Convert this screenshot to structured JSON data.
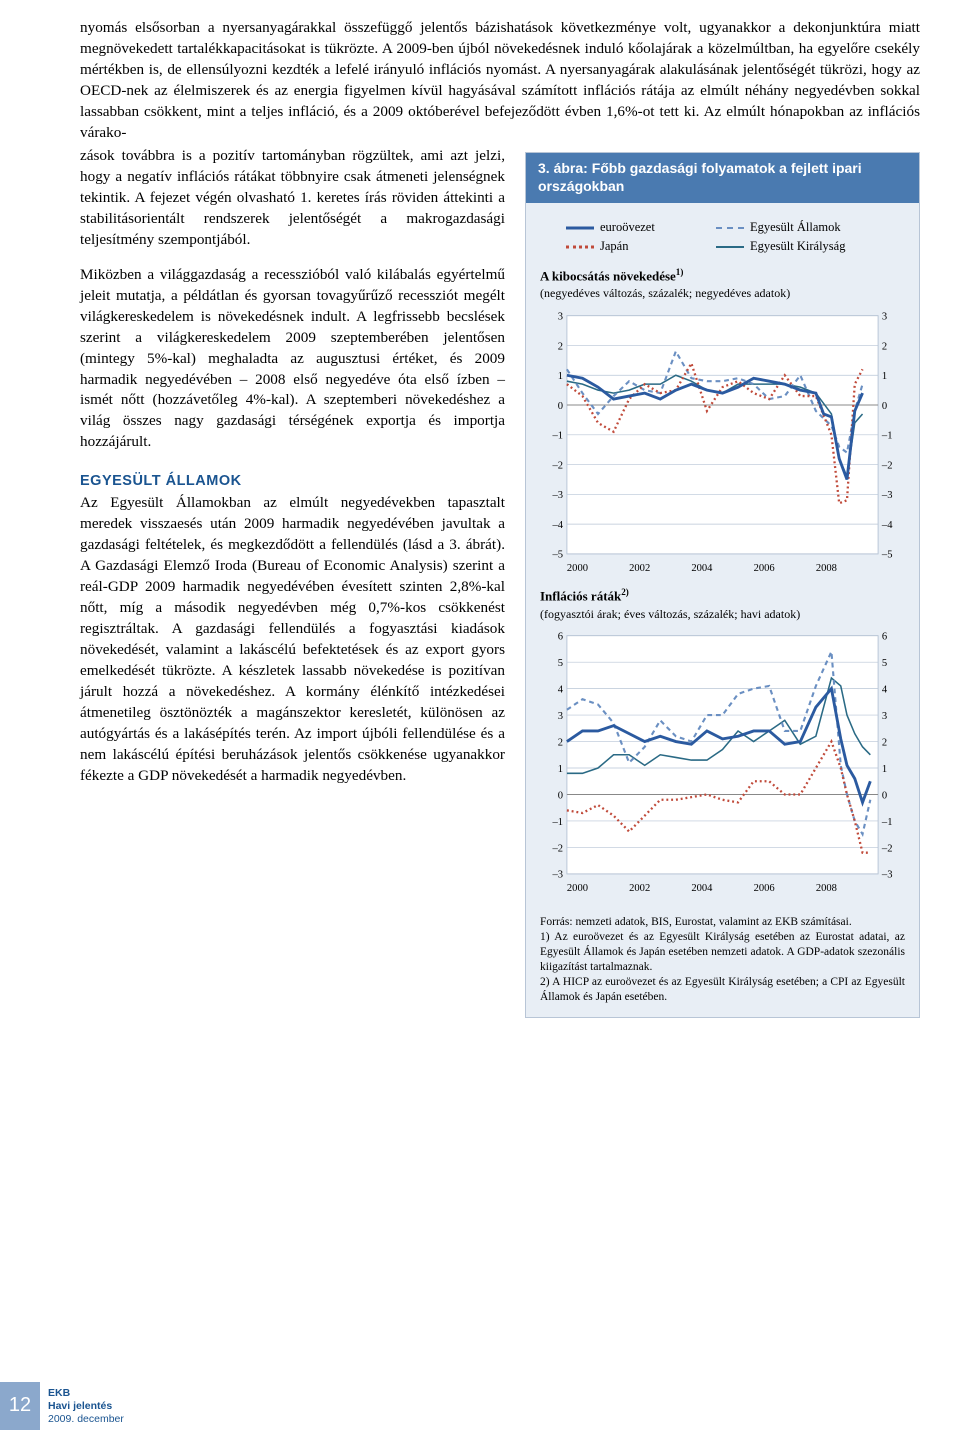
{
  "paragraphs": {
    "p1": "nyomás elsősorban a nyersanyagárakkal összefüggő jelentős bázishatások következménye volt, ugyanakkor a dekonjunktúra miatt megnövekedett tartalékkapacitásokat is tükrözte. A 2009-ben újból növekedésnek induló kőolajárak a közelmúltban, ha egyelőre csekély mértékben is, de ellensúlyozni kezdték a lefelé irányuló inflációs nyomást. A nyersanyagárak alakulásának jelentőségét tükrözi, hogy az OECD-nek az élelmiszerek és az energia figyelmen kívül hagyásával számított inflációs rátája az elmúlt néhány negyedévben sokkal lassabban csökkent, mint a teljes infláció, és a 2009 októberével befejeződött évben 1,6%-ot tett ki. Az elmúlt hónapokban az inflációs várako-",
    "p2a": "zások továbbra is a pozitív tartományban rögzültek, ami azt jelzi, hogy a negatív inflációs rátákat többnyire csak átmeneti jelenségnek tekintik. A fejezet végén olvasható 1. keretes írás röviden áttekinti a stabilitásorientált rendszerek jelentőségét a makrogazdasági teljesítmény szempontjából.",
    "p3": "Miközben a világgazdaság a recesszióból való kilábalás egyértelmű jeleit mutatja, a példátlan és gyorsan tovagyűrűző recessziót megélt világkereskedelem is növekedésnek indult. A legfrissebb becslések szerint a világkereskedelem 2009 szeptemberében jelentősen (mintegy 5%-kal) meghaladta az augusztusi értéket, és 2009 harmadik negyedévében – 2008 első negyedéve óta első ízben – ismét nőtt (hozzávetőleg 4%-kal). A szeptemberi növekedéshez a világ összes nagy gazdasági térségének exportja és importja hozzájárult.",
    "p4": "Az Egyesült Államokban az elmúlt negyedévekben tapasztalt meredek visszaesés után 2009 harmadik negyedévében javultak a gazdasági feltételek, és megkezdődött a fellendülés (lásd a 3. ábrát). A Gazdasági Elemző Iroda (Bureau of Economic Analysis) szerint a reál-GDP 2009 harmadik negyedévében évesített szinten 2,8%-kal nőtt, míg a második negyedévben még 0,7%-kos csökkenést regisztráltak. A gazdasági fellendülés a fogyasztási kiadások növekedését, valamint a lakáscélú befektetések és az export gyors emelkedését tükrözte. A készletek lassabb növekedése is pozitívan járult hozzá a növekedéshez. A kormány élénkítő intézkedései átmenetileg ösztönözték a magánszektor keresletét, különösen az autógyártás és a lakásépítés terén. Az import újbóli fellendülése és a nem lakáscélú építési beruházások jelentős csökkenése ugyanakkor fékezte a GDP növekedését a harmadik negyedévben."
  },
  "section_head": "EGYESÜLT ÁLLAMOK",
  "chart": {
    "title": "3. ábra: Főbb gazdasági folyamatok a fejlett ipari országokban",
    "legend": {
      "euro": "euroövezet",
      "us": "Egyesült Államok",
      "japan": "Japán",
      "uk": "Egyesült Királyság"
    },
    "panel1": {
      "title": "A kibocsátás növekedése",
      "sup": "1)",
      "note": "(negyedéves változás, százalék; negyedéves adatok)",
      "ymin": -5.0,
      "ymax": 3.0,
      "ystep": 1.0,
      "xticks": [
        "2000",
        "2002",
        "2004",
        "2006",
        "2008"
      ],
      "xmin": 2000,
      "xmax": 2010,
      "series": {
        "euro": [
          [
            2000,
            1.0
          ],
          [
            2000.5,
            0.9
          ],
          [
            2001,
            0.6
          ],
          [
            2001.5,
            0.2
          ],
          [
            2002,
            0.3
          ],
          [
            2002.5,
            0.4
          ],
          [
            2003,
            0.2
          ],
          [
            2003.5,
            0.5
          ],
          [
            2004,
            0.7
          ],
          [
            2004.5,
            0.5
          ],
          [
            2005,
            0.4
          ],
          [
            2005.5,
            0.6
          ],
          [
            2006,
            0.9
          ],
          [
            2006.5,
            0.8
          ],
          [
            2007,
            0.7
          ],
          [
            2007.5,
            0.5
          ],
          [
            2008,
            0.4
          ],
          [
            2008.25,
            -0.3
          ],
          [
            2008.5,
            -0.4
          ],
          [
            2008.75,
            -1.8
          ],
          [
            2009,
            -2.5
          ],
          [
            2009.25,
            -0.2
          ],
          [
            2009.5,
            0.4
          ]
        ],
        "us": [
          [
            2000,
            1.2
          ],
          [
            2000.5,
            0.4
          ],
          [
            2001,
            -0.3
          ],
          [
            2001.5,
            0.3
          ],
          [
            2002,
            0.8
          ],
          [
            2002.5,
            0.5
          ],
          [
            2003,
            0.4
          ],
          [
            2003.5,
            1.8
          ],
          [
            2004,
            0.9
          ],
          [
            2004.5,
            0.8
          ],
          [
            2005,
            0.8
          ],
          [
            2005.5,
            0.9
          ],
          [
            2006,
            0.7
          ],
          [
            2006.5,
            0.2
          ],
          [
            2007,
            0.3
          ],
          [
            2007.5,
            1.0
          ],
          [
            2008,
            -0.2
          ],
          [
            2008.5,
            -0.7
          ],
          [
            2008.75,
            -1.4
          ],
          [
            2009,
            -1.6
          ],
          [
            2009.25,
            -0.2
          ],
          [
            2009.5,
            0.7
          ]
        ],
        "japan": [
          [
            2000,
            0.7
          ],
          [
            2000.5,
            0.3
          ],
          [
            2001,
            -0.6
          ],
          [
            2001.5,
            -0.9
          ],
          [
            2002,
            0.2
          ],
          [
            2002.5,
            0.7
          ],
          [
            2003,
            0.4
          ],
          [
            2003.5,
            0.5
          ],
          [
            2004,
            1.4
          ],
          [
            2004.5,
            -0.2
          ],
          [
            2005,
            0.6
          ],
          [
            2005.5,
            0.8
          ],
          [
            2006,
            0.4
          ],
          [
            2006.5,
            0.2
          ],
          [
            2007,
            1.0
          ],
          [
            2007.5,
            0.3
          ],
          [
            2008,
            0.3
          ],
          [
            2008.5,
            -1.0
          ],
          [
            2008.75,
            -3.3
          ],
          [
            2009,
            -3.2
          ],
          [
            2009.25,
            0.7
          ],
          [
            2009.5,
            1.2
          ]
        ],
        "uk": [
          [
            2000,
            0.8
          ],
          [
            2000.5,
            0.7
          ],
          [
            2001,
            0.5
          ],
          [
            2001.5,
            0.4
          ],
          [
            2002,
            0.5
          ],
          [
            2002.5,
            0.7
          ],
          [
            2003,
            0.7
          ],
          [
            2003.5,
            1.0
          ],
          [
            2004,
            0.8
          ],
          [
            2004.5,
            0.5
          ],
          [
            2005,
            0.4
          ],
          [
            2005.5,
            0.7
          ],
          [
            2006,
            0.7
          ],
          [
            2006.5,
            0.7
          ],
          [
            2007,
            0.7
          ],
          [
            2007.5,
            0.6
          ],
          [
            2008,
            0.4
          ],
          [
            2008.5,
            -0.3
          ],
          [
            2008.75,
            -1.8
          ],
          [
            2009,
            -2.4
          ],
          [
            2009.25,
            -0.6
          ],
          [
            2009.5,
            -0.3
          ]
        ]
      }
    },
    "panel2": {
      "title": "Inflációs ráták",
      "sup": "2)",
      "note": "(fogyasztói árak; éves változás, százalék; havi adatok)",
      "ymin": -3,
      "ymax": 6,
      "ystep": 1,
      "xticks": [
        "2000",
        "2002",
        "2004",
        "2006",
        "2008"
      ],
      "xmin": 2000,
      "xmax": 2010,
      "series": {
        "euro": [
          [
            2000,
            2.0
          ],
          [
            2000.5,
            2.4
          ],
          [
            2001,
            2.4
          ],
          [
            2001.5,
            2.6
          ],
          [
            2002,
            2.3
          ],
          [
            2002.5,
            2.0
          ],
          [
            2003,
            2.2
          ],
          [
            2003.5,
            2.0
          ],
          [
            2004,
            1.9
          ],
          [
            2004.5,
            2.4
          ],
          [
            2005,
            2.1
          ],
          [
            2005.5,
            2.2
          ],
          [
            2006,
            2.4
          ],
          [
            2006.5,
            2.4
          ],
          [
            2007,
            1.9
          ],
          [
            2007.5,
            2.0
          ],
          [
            2008,
            3.3
          ],
          [
            2008.5,
            4.0
          ],
          [
            2008.8,
            2.1
          ],
          [
            2009,
            1.1
          ],
          [
            2009.25,
            0.6
          ],
          [
            2009.5,
            -0.3
          ],
          [
            2009.75,
            0.5
          ]
        ],
        "us": [
          [
            2000,
            3.2
          ],
          [
            2000.5,
            3.6
          ],
          [
            2001,
            3.4
          ],
          [
            2001.5,
            2.7
          ],
          [
            2002,
            1.2
          ],
          [
            2002.5,
            1.8
          ],
          [
            2003,
            2.8
          ],
          [
            2003.5,
            2.2
          ],
          [
            2004,
            2.0
          ],
          [
            2004.5,
            3.0
          ],
          [
            2005,
            3.0
          ],
          [
            2005.5,
            3.8
          ],
          [
            2006,
            4.0
          ],
          [
            2006.5,
            4.1
          ],
          [
            2007,
            2.4
          ],
          [
            2007.5,
            2.4
          ],
          [
            2008,
            4.1
          ],
          [
            2008.5,
            5.4
          ],
          [
            2008.8,
            1.1
          ],
          [
            2009,
            0.0
          ],
          [
            2009.25,
            -1.0
          ],
          [
            2009.5,
            -1.5
          ],
          [
            2009.75,
            -0.2
          ]
        ],
        "japan": [
          [
            2000,
            -0.6
          ],
          [
            2000.5,
            -0.7
          ],
          [
            2001,
            -0.4
          ],
          [
            2001.5,
            -0.8
          ],
          [
            2002,
            -1.4
          ],
          [
            2002.5,
            -0.8
          ],
          [
            2003,
            -0.2
          ],
          [
            2003.5,
            -0.2
          ],
          [
            2004,
            -0.1
          ],
          [
            2004.5,
            0.0
          ],
          [
            2005,
            -0.2
          ],
          [
            2005.5,
            -0.3
          ],
          [
            2006,
            0.5
          ],
          [
            2006.5,
            0.5
          ],
          [
            2007,
            0.0
          ],
          [
            2007.5,
            0.0
          ],
          [
            2008,
            1.0
          ],
          [
            2008.5,
            2.0
          ],
          [
            2008.8,
            1.0
          ],
          [
            2009,
            0.0
          ],
          [
            2009.25,
            -1.0
          ],
          [
            2009.5,
            -2.2
          ],
          [
            2009.75,
            -2.2
          ]
        ],
        "uk": [
          [
            2000,
            0.8
          ],
          [
            2000.5,
            0.8
          ],
          [
            2001,
            1.0
          ],
          [
            2001.5,
            1.5
          ],
          [
            2002,
            1.5
          ],
          [
            2002.5,
            1.1
          ],
          [
            2003,
            1.5
          ],
          [
            2003.5,
            1.4
          ],
          [
            2004,
            1.3
          ],
          [
            2004.5,
            1.3
          ],
          [
            2005,
            1.7
          ],
          [
            2005.5,
            2.4
          ],
          [
            2006,
            2.0
          ],
          [
            2006.5,
            2.4
          ],
          [
            2007,
            2.8
          ],
          [
            2007.5,
            1.9
          ],
          [
            2008,
            2.2
          ],
          [
            2008.5,
            4.4
          ],
          [
            2008.8,
            4.1
          ],
          [
            2009,
            3.0
          ],
          [
            2009.25,
            2.3
          ],
          [
            2009.5,
            1.8
          ],
          [
            2009.75,
            1.5
          ]
        ]
      }
    },
    "colors": {
      "euro": "#2b5aa0",
      "us": "#6a8fc2",
      "japan": "#c04a3a",
      "uk": "#2a6a85",
      "grid": "#b8c5d6",
      "bg": "#ffffff"
    },
    "source": "Forrás: nemzeti adatok, BIS, Eurostat, valamint az EKB számításai.\n1) Az euroövezet és az Egyesült Királyság esetében az Eurostat adatai, az Egyesült Államok és Japán esetében nemzeti adatok. A GDP-adatok szezonális kiigazítást tartalmaznak.\n2) A HICP az euroövezet és az Egyesült Királyság esetében; a CPI az Egyesült Államok és Japán esetében."
  },
  "footer": {
    "page": "12",
    "l1": "EKB",
    "l2": "Havi jelentés",
    "l3": "2009. december"
  }
}
